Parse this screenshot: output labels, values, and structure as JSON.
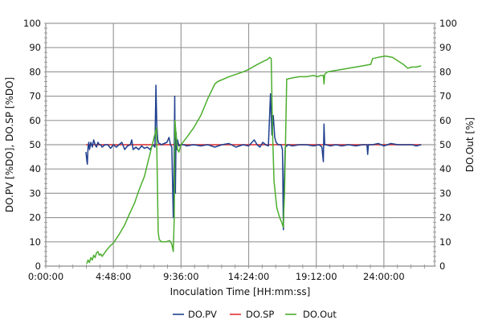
{
  "chart_data": {
    "type": "line",
    "title": "",
    "xlabel": "Inoculation Time [HH:mm:ss]",
    "ylabel": "DO.PV [%DO], DO.SP [%DO]",
    "y2label": "DO.Out [%]",
    "x_unit": "hours",
    "xlim": [
      0,
      27.6
    ],
    "ylim": [
      0,
      100
    ],
    "y2lim": [
      0,
      100
    ],
    "grid": true,
    "legend_position": "bottom",
    "x_ticks": [
      {
        "value": 0,
        "label": "0:00:00"
      },
      {
        "value": 4.8,
        "label": "4:48:00"
      },
      {
        "value": 9.6,
        "label": "9:36:00"
      },
      {
        "value": 14.4,
        "label": "14:24:00"
      },
      {
        "value": 19.2,
        "label": "19:12:00"
      },
      {
        "value": 24.0,
        "label": "24:00:00"
      }
    ],
    "y_ticks": [
      0,
      10,
      20,
      30,
      40,
      50,
      60,
      70,
      80,
      90,
      100
    ],
    "y2_ticks": [
      0,
      10,
      20,
      30,
      40,
      50,
      60,
      70,
      80,
      90,
      100
    ],
    "series": [
      {
        "name": "DO.PV",
        "color": "#1f3f8f",
        "axis": "left",
        "x": [
          2.85,
          2.9,
          2.95,
          3.0,
          3.05,
          3.1,
          3.2,
          3.3,
          3.4,
          3.5,
          3.6,
          3.7,
          3.8,
          3.9,
          4.0,
          4.2,
          4.4,
          4.6,
          4.8,
          5.0,
          5.2,
          5.4,
          5.6,
          5.8,
          6.0,
          6.1,
          6.2,
          6.4,
          6.6,
          6.8,
          7.0,
          7.2,
          7.4,
          7.6,
          7.75,
          7.82,
          7.88,
          7.95,
          8.02,
          8.1,
          8.2,
          8.4,
          8.6,
          8.75,
          8.85,
          8.95,
          9.05,
          9.1,
          9.15,
          9.2,
          9.25,
          9.3,
          9.35,
          9.45,
          9.6,
          9.8,
          10.0,
          10.5,
          11.0,
          11.5,
          12.0,
          12.5,
          13.0,
          13.5,
          14.0,
          14.4,
          14.8,
          15.0,
          15.2,
          15.4,
          15.6,
          15.8,
          15.95,
          16.05,
          16.15,
          16.25,
          16.35,
          16.5,
          16.7,
          16.8,
          16.87,
          16.92,
          17.0,
          17.2,
          17.5,
          18.0,
          18.5,
          19.0,
          19.4,
          19.6,
          19.7,
          19.75,
          19.8,
          19.9,
          20.2,
          20.6,
          21.0,
          21.5,
          22.0,
          22.5,
          22.8,
          22.85,
          22.9,
          23.2,
          23.6,
          24.0,
          24.5,
          25.0,
          25.5,
          26.0,
          26.3,
          26.65
        ],
        "values": [
          47,
          44,
          42,
          49,
          51,
          48,
          51,
          49,
          52,
          50,
          49,
          51,
          50,
          50,
          49,
          50,
          50,
          48.5,
          50,
          49,
          50,
          51,
          48,
          49.5,
          50,
          52,
          48,
          49,
          48,
          49.5,
          48.5,
          49,
          48,
          50,
          49,
          74.5,
          58,
          52,
          50.5,
          50.5,
          50,
          50.5,
          51,
          53,
          50,
          49,
          20,
          38,
          70,
          30,
          55,
          48,
          52,
          49.5,
          50,
          50,
          49.5,
          50,
          49.5,
          50,
          49,
          50,
          50.5,
          49,
          50,
          49.5,
          52,
          50,
          49,
          51,
          50,
          49.5,
          71,
          54,
          62,
          53,
          51,
          50,
          50,
          48,
          15,
          35,
          49,
          50,
          49.5,
          50,
          50,
          49.5,
          50,
          49,
          43,
          58.5,
          50,
          50,
          49.5,
          50,
          49.5,
          50,
          49.5,
          50,
          50,
          46,
          50,
          50,
          50.5,
          49.5,
          50.5,
          50,
          50,
          50,
          49.5,
          50
        ]
      },
      {
        "name": "DO.SP",
        "color": "#e03030",
        "axis": "left",
        "x": [
          2.85,
          26.65
        ],
        "values": [
          50,
          50
        ]
      },
      {
        "name": "DO.Out",
        "color": "#4cae2e",
        "axis": "right",
        "x": [
          2.9,
          3.0,
          3.1,
          3.2,
          3.3,
          3.4,
          3.5,
          3.6,
          3.7,
          3.8,
          3.9,
          4.0,
          4.3,
          4.6,
          4.8,
          5.2,
          5.6,
          5.9,
          6.3,
          6.6,
          7.0,
          7.3,
          7.6,
          7.86,
          7.92,
          7.98,
          8.05,
          8.2,
          8.5,
          8.8,
          8.95,
          9.05,
          9.12,
          9.17,
          9.25,
          9.35,
          9.45,
          9.6,
          10.0,
          10.5,
          11.0,
          11.5,
          12.0,
          12.2,
          13.0,
          14.0,
          14.4,
          15.0,
          15.5,
          15.7,
          15.8,
          15.9,
          16.0,
          16.1,
          16.2,
          16.4,
          16.6,
          16.75,
          16.85,
          16.95,
          17.1,
          17.5,
          18.0,
          18.5,
          19.0,
          19.3,
          19.5,
          19.7,
          19.75,
          19.8,
          20.0,
          20.5,
          21.0,
          21.5,
          22.0,
          22.5,
          23.0,
          23.06,
          23.2,
          23.6,
          24.1,
          24.6,
          25.0,
          25.4,
          25.7,
          26.0,
          26.3,
          26.65
        ],
        "values": [
          1,
          2.5,
          1.5,
          3.5,
          2.5,
          4.5,
          3.5,
          5.5,
          6,
          4.5,
          5,
          4,
          6.5,
          8.5,
          9.5,
          13,
          17,
          21,
          26,
          31,
          37,
          44,
          51,
          57,
          35,
          14,
          11,
          10,
          10,
          10.5,
          9,
          6,
          20,
          60,
          54,
          48,
          47,
          50,
          53,
          57,
          62,
          69,
          75,
          76,
          78,
          80,
          81,
          83,
          84.5,
          85,
          85.5,
          86,
          85.5,
          55,
          35,
          24,
          20,
          18,
          16,
          30,
          77,
          77.5,
          78,
          78,
          78.5,
          78,
          78.5,
          78.5,
          75,
          79,
          80,
          80.5,
          81,
          81.5,
          82,
          82.5,
          83,
          83,
          85.5,
          86,
          86.5,
          86,
          84.5,
          83,
          81.5,
          82,
          82,
          82.5
        ]
      }
    ]
  },
  "legend": {
    "items": [
      {
        "label": "DO.PV",
        "color": "#1f3f8f"
      },
      {
        "label": "DO.SP",
        "color": "#e03030"
      },
      {
        "label": "DO.Out",
        "color": "#4cae2e"
      }
    ]
  }
}
